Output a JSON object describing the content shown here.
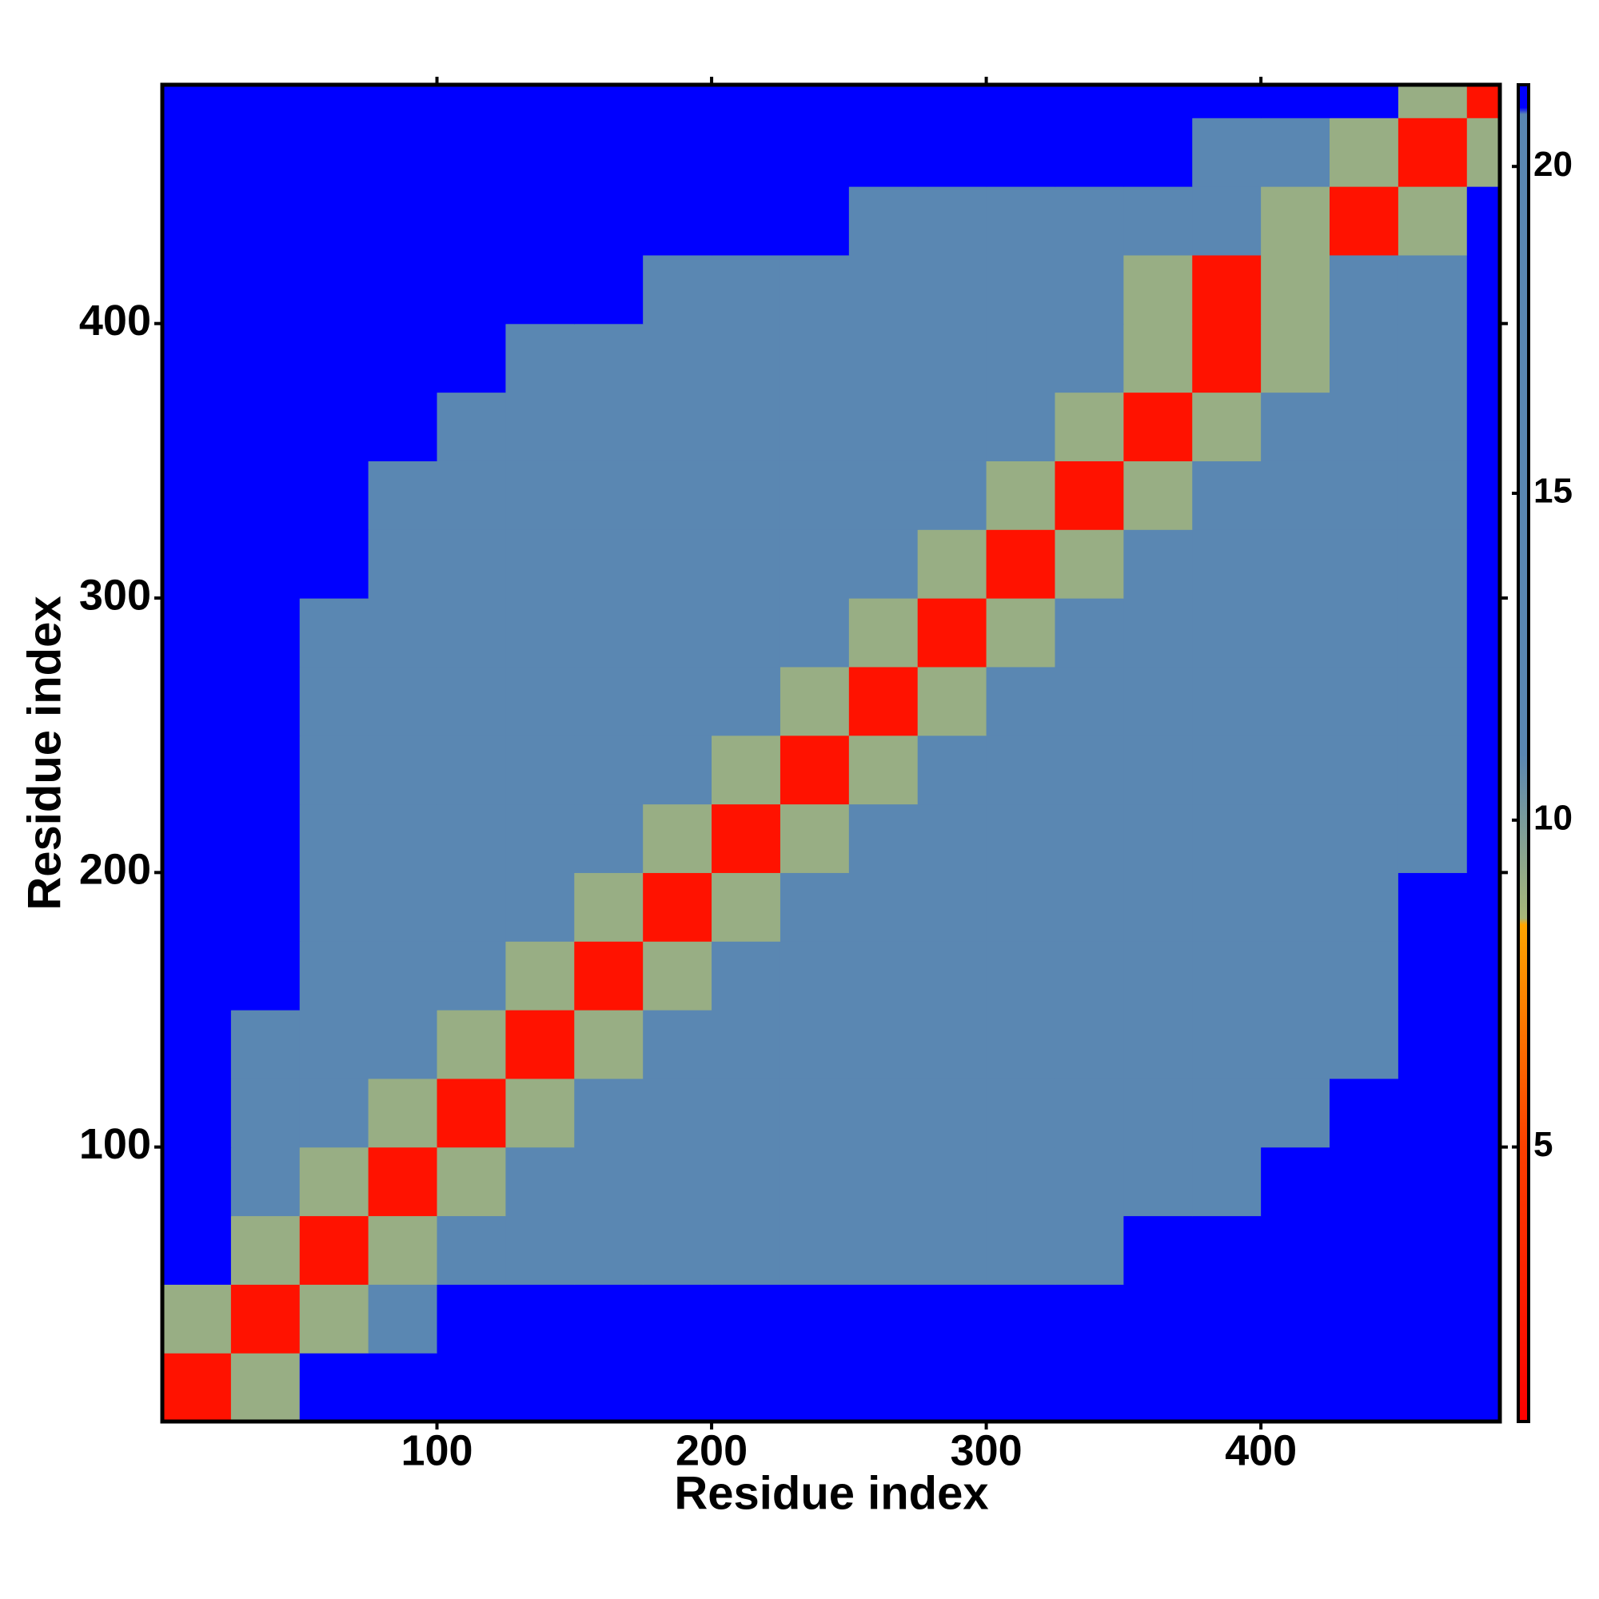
{
  "chart_data": {
    "type": "heatmap",
    "xlabel": "Residue index",
    "ylabel": "Residue index",
    "xlim": [
      0,
      487
    ],
    "ylim": [
      0,
      487
    ],
    "xticks": [
      100,
      200,
      300,
      400
    ],
    "yticks": [
      100,
      200,
      300,
      400
    ],
    "xbins": [
      0,
      25,
      50,
      75,
      100,
      125,
      150,
      175,
      200,
      225,
      250,
      275,
      300,
      325,
      350,
      375,
      400,
      425,
      450,
      475,
      487
    ],
    "ybins": [
      0,
      25,
      50,
      75,
      100,
      125,
      150,
      175,
      200,
      225,
      250,
      275,
      300,
      325,
      350,
      375,
      400,
      425,
      450,
      475,
      487
    ],
    "z": [
      [
        2,
        9,
        21,
        21,
        21,
        21,
        21,
        21,
        21,
        21,
        21,
        21,
        21,
        21,
        21,
        21,
        21,
        21,
        21,
        21
      ],
      [
        9,
        2,
        9,
        11,
        21,
        21,
        21,
        21,
        21,
        21,
        21,
        21,
        21,
        21,
        21,
        21,
        21,
        21,
        21,
        21
      ],
      [
        21,
        9,
        2,
        9,
        11,
        13,
        17,
        17,
        17,
        17,
        17,
        17,
        17,
        17,
        21,
        21,
        21,
        21,
        21,
        21
      ],
      [
        21,
        11,
        9,
        2,
        9,
        11,
        13,
        17,
        17,
        17,
        17,
        17,
        17,
        17,
        17,
        17,
        21,
        21,
        21,
        21
      ],
      [
        21,
        13,
        11,
        9,
        2,
        9,
        11,
        13,
        17,
        17,
        17,
        17,
        17,
        17,
        17,
        17,
        17,
        21,
        21,
        21
      ],
      [
        21,
        17,
        13,
        11,
        9,
        2,
        9,
        11,
        13,
        17,
        17,
        17,
        17,
        17,
        17,
        17,
        17,
        17,
        21,
        21
      ],
      [
        21,
        21,
        17,
        13,
        11,
        9,
        2,
        9,
        11,
        13,
        17,
        17,
        17,
        17,
        17,
        17,
        17,
        17,
        21,
        21
      ],
      [
        21,
        21,
        17,
        17,
        13,
        11,
        9,
        2,
        9,
        11,
        13,
        17,
        17,
        17,
        17,
        17,
        17,
        17,
        21,
        21
      ],
      [
        21,
        21,
        17,
        17,
        17,
        13,
        11,
        9,
        2,
        9,
        11,
        13,
        17,
        17,
        17,
        17,
        17,
        17,
        17,
        21
      ],
      [
        21,
        21,
        17,
        17,
        17,
        17,
        13,
        11,
        9,
        2,
        9,
        11,
        13,
        17,
        17,
        17,
        17,
        17,
        17,
        21
      ],
      [
        21,
        21,
        17,
        17,
        17,
        17,
        17,
        13,
        11,
        9,
        2,
        9,
        11,
        13,
        17,
        17,
        17,
        17,
        17,
        21
      ],
      [
        21,
        21,
        17,
        17,
        17,
        17,
        17,
        17,
        13,
        11,
        9,
        2,
        9,
        11,
        13,
        17,
        17,
        17,
        17,
        21
      ],
      [
        21,
        21,
        21,
        17,
        17,
        17,
        17,
        17,
        17,
        13,
        11,
        9,
        2,
        9,
        11,
        13,
        17,
        17,
        17,
        21
      ],
      [
        21,
        21,
        21,
        17,
        17,
        17,
        17,
        17,
        17,
        17,
        13,
        11,
        9,
        2,
        9,
        11,
        13,
        17,
        17,
        21
      ],
      [
        21,
        21,
        21,
        21,
        17,
        17,
        17,
        17,
        17,
        17,
        17,
        13,
        11,
        9,
        2,
        9,
        11,
        13,
        17,
        21
      ],
      [
        21,
        21,
        21,
        21,
        21,
        17,
        17,
        17,
        17,
        17,
        17,
        17,
        13,
        11,
        9,
        2,
        9,
        11,
        13,
        21
      ],
      [
        21,
        21,
        21,
        21,
        21,
        21,
        21,
        17,
        17,
        17,
        17,
        17,
        13,
        11,
        9,
        2,
        9,
        11,
        13,
        21
      ],
      [
        21,
        21,
        21,
        21,
        21,
        21,
        21,
        21,
        21,
        21,
        17,
        17,
        17,
        17,
        13,
        11,
        9,
        2,
        9,
        21
      ],
      [
        21,
        21,
        21,
        21,
        21,
        21,
        21,
        21,
        21,
        21,
        21,
        21,
        21,
        21,
        21,
        13,
        11,
        9,
        2,
        9
      ],
      [
        21,
        21,
        21,
        21,
        21,
        21,
        21,
        21,
        21,
        21,
        21,
        21,
        21,
        21,
        21,
        21,
        21,
        21,
        9,
        2
      ]
    ],
    "clim": [
      0.8,
      21.25
    ],
    "cticks": [
      5,
      10,
      15,
      20
    ],
    "colorscale": [
      {
        "value": 0.8,
        "color": "#ff0000"
      },
      {
        "value": 5,
        "color": "#ff4000"
      },
      {
        "value": 8.4,
        "color": "#ffa500"
      },
      {
        "value": 8.5,
        "color": "#a8b878"
      },
      {
        "value": 11,
        "color": "#5a87b2"
      },
      {
        "value": 20.8,
        "color": "#5a87b2"
      },
      {
        "value": 20.9,
        "color": "#0000ff"
      },
      {
        "value": 21.25,
        "color": "#0000ff"
      }
    ]
  }
}
